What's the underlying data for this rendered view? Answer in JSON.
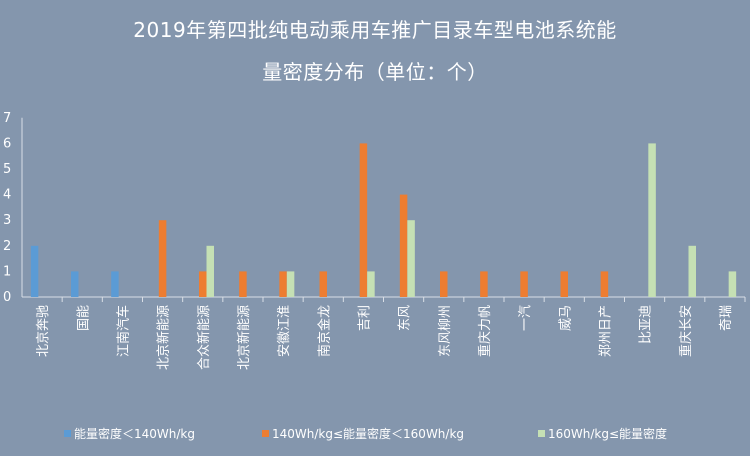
{
  "chart_data": {
    "type": "bar",
    "title_line1": "2019年第四批纯电动乘用车推广目录车型电池系统能",
    "title_line2": "量密度分布（单位：个）",
    "categories": [
      "北京奔驰",
      "国能",
      "江南汽车",
      "北京新能源",
      "合众新能源",
      "北京新能源",
      "安徽江淮",
      "南京金龙",
      "吉利",
      "东风",
      "东风柳州",
      "重庆力帆",
      "一汽",
      "威马",
      "郑州日产",
      "比亚迪",
      "重庆长安",
      "奇瑞"
    ],
    "series": [
      {
        "name": "能量密度＜140Wh/kg",
        "color": "#5b9bd5",
        "values": [
          2,
          1,
          1,
          0,
          0,
          0,
          0,
          0,
          0,
          0,
          0,
          0,
          0,
          0,
          0,
          0,
          0,
          0
        ]
      },
      {
        "name": "140Wh/kg≤能量密度＜160Wh/kg",
        "color": "#ed7d31",
        "values": [
          0,
          0,
          0,
          3,
          1,
          1,
          1,
          1,
          6,
          4,
          1,
          1,
          1,
          1,
          1,
          0,
          0,
          0
        ]
      },
      {
        "name": "160Wh/kg≤能量密度",
        "color": "#c5e0b4",
        "values": [
          0,
          0,
          0,
          0,
          2,
          0,
          1,
          0,
          1,
          3,
          0,
          0,
          0,
          0,
          0,
          6,
          2,
          1
        ]
      }
    ],
    "yticks": [
      0,
      1,
      2,
      3,
      4,
      5,
      6,
      7
    ],
    "ylim": [
      0,
      7
    ],
    "xlabel": "",
    "ylabel": "",
    "grid": false,
    "legend_position": "bottom"
  },
  "colors": {
    "background": "#8496ad",
    "axis": "#d9dee6",
    "text": "#ffffff"
  }
}
